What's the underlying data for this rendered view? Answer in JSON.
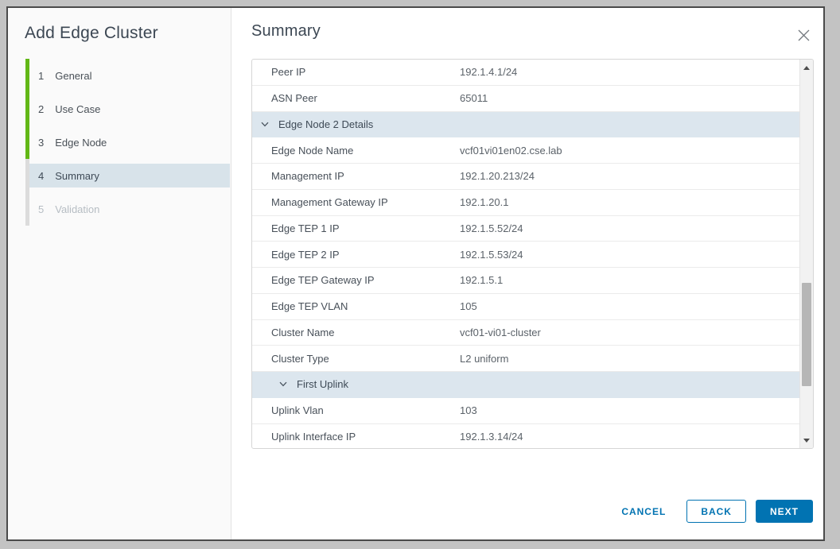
{
  "dialog": {
    "title": "Add Edge Cluster"
  },
  "sidebar": {
    "steps": [
      {
        "num": "1",
        "label": "General",
        "state": "completed"
      },
      {
        "num": "2",
        "label": "Use Case",
        "state": "completed"
      },
      {
        "num": "3",
        "label": "Edge Node",
        "state": "completed"
      },
      {
        "num": "4",
        "label": "Summary",
        "state": "current"
      },
      {
        "num": "5",
        "label": "Validation",
        "state": "upcoming"
      }
    ]
  },
  "main": {
    "heading": "Summary",
    "close_icon": "close-x",
    "table": {
      "rows": [
        {
          "type": "field",
          "label": "Peer IP",
          "value": "192.1.4.1/24"
        },
        {
          "type": "field",
          "label": "ASN Peer",
          "value": "65011"
        },
        {
          "type": "section",
          "label": "Edge Node 2 Details",
          "indent": 0,
          "icon": "chevron-down"
        },
        {
          "type": "field",
          "label": "Edge Node Name",
          "value": "vcf01vi01en02.cse.lab"
        },
        {
          "type": "field",
          "label": "Management IP",
          "value": "192.1.20.213/24"
        },
        {
          "type": "field",
          "label": "Management Gateway IP",
          "value": "192.1.20.1"
        },
        {
          "type": "field",
          "label": "Edge TEP 1 IP",
          "value": "192.1.5.52/24"
        },
        {
          "type": "field",
          "label": "Edge TEP 2 IP",
          "value": "192.1.5.53/24"
        },
        {
          "type": "field",
          "label": "Edge TEP Gateway IP",
          "value": "192.1.5.1"
        },
        {
          "type": "field",
          "label": "Edge TEP VLAN",
          "value": "105"
        },
        {
          "type": "field",
          "label": "Cluster Name",
          "value": "vcf01-vi01-cluster"
        },
        {
          "type": "field",
          "label": "Cluster Type",
          "value": "L2 uniform"
        },
        {
          "type": "section",
          "label": "First Uplink",
          "indent": 1,
          "icon": "chevron-down"
        },
        {
          "type": "field",
          "label": "Uplink Vlan",
          "value": "103"
        },
        {
          "type": "field",
          "label": "Uplink Interface IP",
          "value": "192.1.3.14/24"
        }
      ],
      "scrollbar": {
        "up_icon": "triangle-up",
        "down_icon": "triangle-down"
      }
    },
    "footer": {
      "cancel_label": "CANCEL",
      "back_label": "BACK",
      "next_label": "NEXT"
    }
  },
  "colors": {
    "accent_blue": "#0173b2",
    "step_completed_green": "#61b715",
    "active_step_bg": "#d8e3ea",
    "section_row_bg": "#dce6ee",
    "frame_gray": "#c3c3c3"
  }
}
